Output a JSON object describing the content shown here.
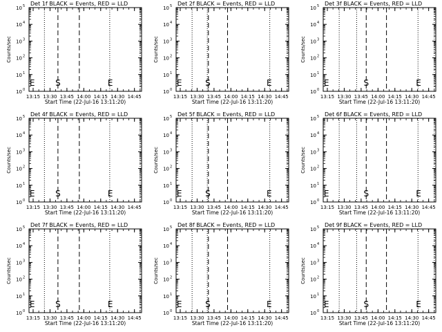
{
  "figure": {
    "background": "#ffffff",
    "foreground": "#000000"
  },
  "chart_data": [
    {
      "type": "line",
      "title": "Det 1f BLACK = Events, RED = LLD",
      "xlabel": "Start Time (22-Jul-16 13:11:20)",
      "ylabel": "Counts/sec",
      "x_ticks": [
        "13:15",
        "13:30",
        "13:45",
        "14:00",
        "14:15",
        "14:30",
        "14:45"
      ],
      "y_ticks": [
        {
          "base": "10",
          "exp": "0"
        },
        {
          "base": "10",
          "exp": "1"
        },
        {
          "base": "10",
          "exp": "2"
        },
        {
          "base": "10",
          "exp": "3"
        },
        {
          "base": "10",
          "exp": "4"
        },
        {
          "base": "10",
          "exp": "5"
        }
      ],
      "y_scale": "log",
      "ylim": [
        1,
        100000
      ],
      "xlim_minutes_after_start": [
        0,
        100
      ],
      "dotted_lines_min": [
        13.7,
        71.7,
        98.7
      ],
      "dashed_lines_min": [
        25.7,
        44.7
      ],
      "markers": [
        {
          "label": "E",
          "x_min": 0.5
        },
        {
          "label": "S",
          "x_min": 25.7
        },
        {
          "label": "E",
          "x_min": 72.2
        }
      ],
      "series": []
    },
    {
      "type": "line",
      "title": "Det 2f BLACK = Events, RED = LLD",
      "xlabel": "Start Time (22-Jul-16 13:11:20)",
      "ylabel": "Counts/sec",
      "x_ticks": [
        "13:15",
        "13:30",
        "13:45",
        "14:00",
        "14:15",
        "14:30",
        "14:45"
      ],
      "y_ticks": [
        {
          "base": "10",
          "exp": "0"
        },
        {
          "base": "10",
          "exp": "1"
        },
        {
          "base": "10",
          "exp": "2"
        },
        {
          "base": "10",
          "exp": "3"
        },
        {
          "base": "10",
          "exp": "4"
        },
        {
          "base": "10",
          "exp": "5"
        }
      ],
      "y_scale": "log",
      "ylim": [
        1,
        100000
      ],
      "xlim_minutes_after_start": [
        0,
        100
      ],
      "dotted_lines_min": [
        14.2,
        27.7,
        83.2,
        98.7
      ],
      "dashed_lines_min": [
        28.7,
        45.7
      ],
      "markers": [
        {
          "label": "E",
          "x_min": 0.5
        },
        {
          "label": "S",
          "x_min": 28.2
        },
        {
          "label": "E",
          "x_min": 82.7
        }
      ],
      "series": []
    },
    {
      "type": "line",
      "title": "Det 3f BLACK = Events, RED = LLD",
      "xlabel": "Start Time (22-Jul-16 13:11:20)",
      "ylabel": "Counts/sec",
      "x_ticks": [
        "13:15",
        "13:30",
        "13:45",
        "14:00",
        "14:15",
        "14:30",
        "14:45"
      ],
      "y_ticks": [
        {
          "base": "10",
          "exp": "0"
        },
        {
          "base": "10",
          "exp": "1"
        },
        {
          "base": "10",
          "exp": "2"
        },
        {
          "base": "10",
          "exp": "3"
        },
        {
          "base": "10",
          "exp": "4"
        },
        {
          "base": "10",
          "exp": "5"
        }
      ],
      "y_scale": "log",
      "ylim": [
        1,
        100000
      ],
      "xlim_minutes_after_start": [
        0,
        100
      ],
      "dotted_lines_min": [
        14.2,
        29.7,
        84.2,
        98.7
      ],
      "dashed_lines_min": [
        38.2,
        56.2
      ],
      "markers": [
        {
          "label": "E",
          "x_min": 0.5
        },
        {
          "label": "S",
          "x_min": 38.2
        },
        {
          "label": "E",
          "x_min": 84.7
        }
      ],
      "series": []
    },
    {
      "type": "line",
      "title": "Det 4f BLACK = Events, RED = LLD",
      "xlabel": "Start Time (22-Jul-16 13:11:20)",
      "ylabel": "Counts/sec",
      "x_ticks": [
        "13:15",
        "13:30",
        "13:45",
        "14:00",
        "14:15",
        "14:30",
        "14:45"
      ],
      "y_ticks": [
        {
          "base": "10",
          "exp": "0"
        },
        {
          "base": "10",
          "exp": "1"
        },
        {
          "base": "10",
          "exp": "2"
        },
        {
          "base": "10",
          "exp": "3"
        },
        {
          "base": "10",
          "exp": "4"
        },
        {
          "base": "10",
          "exp": "5"
        }
      ],
      "y_scale": "log",
      "ylim": [
        1,
        100000
      ],
      "xlim_minutes_after_start": [
        0,
        100
      ],
      "dotted_lines_min": [
        13.7,
        71.7,
        98.7
      ],
      "dashed_lines_min": [
        25.7,
        44.7
      ],
      "markers": [
        {
          "label": "E",
          "x_min": 0.5
        },
        {
          "label": "S",
          "x_min": 25.7
        },
        {
          "label": "E",
          "x_min": 72.2
        }
      ],
      "series": []
    },
    {
      "type": "line",
      "title": "Det 5f BLACK = Events, RED = LLD",
      "xlabel": "Start Time (22-Jul-16 13:11:20)",
      "ylabel": "Counts/sec",
      "x_ticks": [
        "13:15",
        "13:30",
        "13:45",
        "14:00",
        "14:15",
        "14:30",
        "14:45"
      ],
      "y_ticks": [
        {
          "base": "10",
          "exp": "0"
        },
        {
          "base": "10",
          "exp": "1"
        },
        {
          "base": "10",
          "exp": "2"
        },
        {
          "base": "10",
          "exp": "3"
        },
        {
          "base": "10",
          "exp": "4"
        },
        {
          "base": "10",
          "exp": "5"
        }
      ],
      "y_scale": "log",
      "ylim": [
        1,
        100000
      ],
      "xlim_minutes_after_start": [
        0,
        100
      ],
      "dotted_lines_min": [
        14.2,
        27.7,
        83.2,
        98.7
      ],
      "dashed_lines_min": [
        28.7,
        45.7
      ],
      "markers": [
        {
          "label": "E",
          "x_min": 0.5
        },
        {
          "label": "S",
          "x_min": 28.2
        },
        {
          "label": "E",
          "x_min": 82.7
        }
      ],
      "series": []
    },
    {
      "type": "line",
      "title": "Det 6f BLACK = Events, RED = LLD",
      "xlabel": "Start Time (22-Jul-16 13:11:20)",
      "ylabel": "Counts/sec",
      "x_ticks": [
        "13:15",
        "13:30",
        "13:45",
        "14:00",
        "14:15",
        "14:30",
        "14:45"
      ],
      "y_ticks": [
        {
          "base": "10",
          "exp": "0"
        },
        {
          "base": "10",
          "exp": "1"
        },
        {
          "base": "10",
          "exp": "2"
        },
        {
          "base": "10",
          "exp": "3"
        },
        {
          "base": "10",
          "exp": "4"
        },
        {
          "base": "10",
          "exp": "5"
        }
      ],
      "y_scale": "log",
      "ylim": [
        1,
        100000
      ],
      "xlim_minutes_after_start": [
        0,
        100
      ],
      "dotted_lines_min": [
        14.2,
        29.7,
        84.2,
        98.7
      ],
      "dashed_lines_min": [
        38.2,
        56.2
      ],
      "markers": [
        {
          "label": "E",
          "x_min": 0.5
        },
        {
          "label": "S",
          "x_min": 38.2
        },
        {
          "label": "E",
          "x_min": 84.7
        }
      ],
      "series": []
    },
    {
      "type": "line",
      "title": "Det 7f BLACK = Events, RED = LLD",
      "xlabel": "Start Time (22-Jul-16 13:11:20)",
      "ylabel": "Counts/sec",
      "x_ticks": [
        "13:15",
        "13:30",
        "13:45",
        "14:00",
        "14:15",
        "14:30",
        "14:45"
      ],
      "y_ticks": [
        {
          "base": "10",
          "exp": "0"
        },
        {
          "base": "10",
          "exp": "1"
        },
        {
          "base": "10",
          "exp": "2"
        },
        {
          "base": "10",
          "exp": "3"
        },
        {
          "base": "10",
          "exp": "4"
        },
        {
          "base": "10",
          "exp": "5"
        }
      ],
      "y_scale": "log",
      "ylim": [
        1,
        100000
      ],
      "xlim_minutes_after_start": [
        0,
        100
      ],
      "dotted_lines_min": [
        13.7,
        71.7,
        98.7
      ],
      "dashed_lines_min": [
        25.7,
        44.7
      ],
      "markers": [
        {
          "label": "E",
          "x_min": 0.5
        },
        {
          "label": "S",
          "x_min": 25.7
        },
        {
          "label": "E",
          "x_min": 72.2
        }
      ],
      "series": []
    },
    {
      "type": "line",
      "title": "Det 8f BLACK = Events, RED = LLD",
      "xlabel": "Start Time (22-Jul-16 13:11:20)",
      "ylabel": "Counts/sec",
      "x_ticks": [
        "13:15",
        "13:30",
        "13:45",
        "14:00",
        "14:15",
        "14:30",
        "14:45"
      ],
      "y_ticks": [
        {
          "base": "10",
          "exp": "0"
        },
        {
          "base": "10",
          "exp": "1"
        },
        {
          "base": "10",
          "exp": "2"
        },
        {
          "base": "10",
          "exp": "3"
        },
        {
          "base": "10",
          "exp": "4"
        },
        {
          "base": "10",
          "exp": "5"
        }
      ],
      "y_scale": "log",
      "ylim": [
        1,
        100000
      ],
      "xlim_minutes_after_start": [
        0,
        100
      ],
      "dotted_lines_min": [
        14.2,
        27.7,
        83.2,
        98.7
      ],
      "dashed_lines_min": [
        28.7,
        45.7
      ],
      "markers": [
        {
          "label": "E",
          "x_min": 0.5
        },
        {
          "label": "S",
          "x_min": 28.2
        },
        {
          "label": "E",
          "x_min": 82.7
        }
      ],
      "series": []
    },
    {
      "type": "line",
      "title": "Det 9f BLACK = Events, RED = LLD",
      "xlabel": "Start Time (22-Jul-16 13:11:20)",
      "ylabel": "Counts/sec",
      "x_ticks": [
        "13:15",
        "13:30",
        "13:45",
        "14:00",
        "14:15",
        "14:30",
        "14:45"
      ],
      "y_ticks": [
        {
          "base": "10",
          "exp": "0"
        },
        {
          "base": "10",
          "exp": "1"
        },
        {
          "base": "10",
          "exp": "2"
        },
        {
          "base": "10",
          "exp": "3"
        },
        {
          "base": "10",
          "exp": "4"
        },
        {
          "base": "10",
          "exp": "5"
        }
      ],
      "y_scale": "log",
      "ylim": [
        1,
        100000
      ],
      "xlim_minutes_after_start": [
        0,
        100
      ],
      "dotted_lines_min": [
        14.2,
        29.7,
        84.2,
        98.7
      ],
      "dashed_lines_min": [
        38.2,
        56.2
      ],
      "markers": [
        {
          "label": "E",
          "x_min": 0.5
        },
        {
          "label": "S",
          "x_min": 38.2
        },
        {
          "label": "E",
          "x_min": 84.7
        }
      ],
      "series": []
    }
  ]
}
